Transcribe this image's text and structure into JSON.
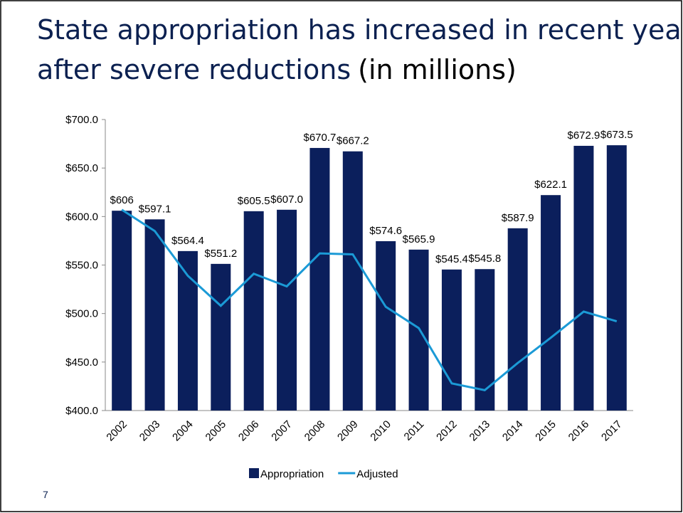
{
  "page_number": "7",
  "chart_data": {
    "type": "bar",
    "title": "State appropriation has increased in recent years after severe reductions",
    "subtitle": "(in millions)",
    "categories": [
      "2002",
      "2003",
      "2004",
      "2005",
      "2006",
      "2007",
      "2008",
      "2009",
      "2010",
      "2011",
      "2012",
      "2013",
      "2014",
      "2015",
      "2016",
      "2017"
    ],
    "series": [
      {
        "name": "Appropriation",
        "type": "bar",
        "color": "#0b1f5c",
        "values": [
          606,
          597.1,
          564.4,
          551.2,
          605.5,
          607.0,
          670.7,
          667.2,
          574.6,
          565.9,
          545.4,
          545.8,
          587.9,
          622.1,
          672.9,
          673.5
        ],
        "value_labels": [
          "$606",
          "$597.1",
          "$564.4",
          "$551.2",
          "$605.5",
          "$607.0",
          "$670.7",
          "$667.2",
          "$574.6",
          "$565.9",
          "$545.4",
          "$545.8",
          "$587.9",
          "$622.1",
          "$672.9",
          "$673.5"
        ]
      },
      {
        "name": "Adjusted",
        "type": "line",
        "color": "#1b9ad6",
        "values": [
          607,
          585,
          539,
          508,
          541,
          528,
          562,
          561,
          507,
          485,
          428,
          421,
          449,
          475,
          502,
          492
        ]
      }
    ],
    "ylim": [
      400,
      700
    ],
    "yticks": [
      {
        "value": 400,
        "label": "$400.0"
      },
      {
        "value": 450,
        "label": "$450.0"
      },
      {
        "value": 500,
        "label": "$500.0"
      },
      {
        "value": 550,
        "label": "$550.0"
      },
      {
        "value": 600,
        "label": "$600.0"
      },
      {
        "value": 650,
        "label": "$650.0"
      },
      {
        "value": 700,
        "label": "$700.0"
      }
    ],
    "legend": "bottom"
  }
}
